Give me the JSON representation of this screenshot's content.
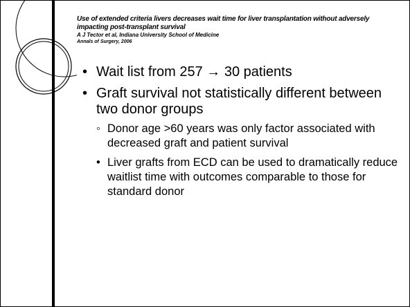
{
  "header": {
    "title": "Use of extended criteria livers decreases wait time for liver transplantation without adversely impacting post-transplant survival",
    "authors": "A J Tector et al, Indiana  University School of Medicine",
    "journal": "Annals of Surgery, 2006"
  },
  "bullets": [
    {
      "text": "Wait list from 257 → 30 patients"
    },
    {
      "text": "Graft survival not statistically different between two donor groups",
      "sub": [
        "Donor age >60 years was only factor associated with decreased graft and patient survival",
        "Liver grafts from ECD can be used to dramatically reduce waitlist time with outcomes comparable to those for standard donor"
      ]
    }
  ]
}
